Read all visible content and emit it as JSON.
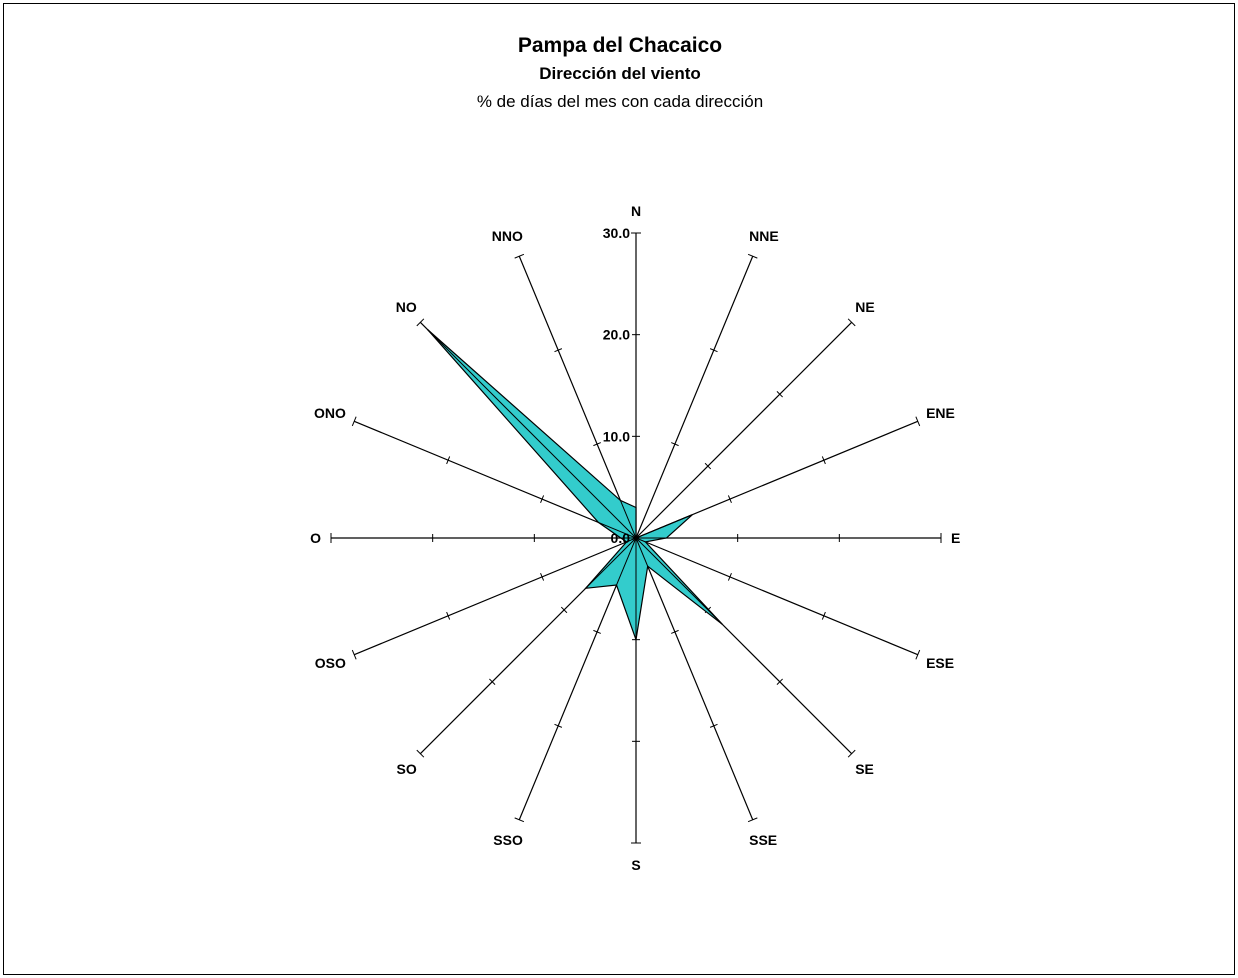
{
  "chart_data": {
    "type": "radar",
    "title": "Pampa del Chacaico",
    "subtitle": "Dirección del viento",
    "caption": "% de días del mes con cada dirección",
    "directions": [
      "N",
      "NNE",
      "NE",
      "ENE",
      "E",
      "ESE",
      "SE",
      "SSE",
      "S",
      "SSO",
      "SO",
      "OSO",
      "O",
      "ONO",
      "NO",
      "NNO"
    ],
    "values": [
      3.0,
      0.0,
      0.0,
      6.0,
      3.0,
      1.0,
      12.0,
      3.0,
      10.0,
      5.0,
      7.0,
      1.0,
      1.5,
      4.0,
      29.0,
      4.0
    ],
    "r_ticks": [
      "0.0",
      "10.0",
      "20.0",
      "30.0"
    ],
    "rlim": [
      0,
      30
    ],
    "fill_color": "#33cccc",
    "line_color": "#000000"
  }
}
